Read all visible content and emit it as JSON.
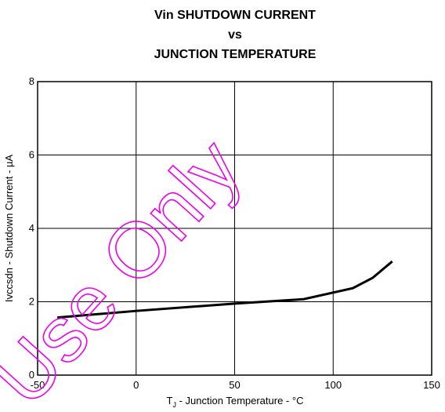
{
  "chart_data": {
    "type": "line",
    "title": [
      "Vin SHUTDOWN CURRENT",
      "vs",
      "JUNCTION TEMPERATURE"
    ],
    "x_label": {
      "symbol": "T",
      "subscript": "J",
      "text": " - Junction Temperature - °C"
    },
    "y_label": "Ivccsdn - Shutdown Current - µA",
    "watermark": "Use Only",
    "x": [
      -40,
      0,
      50,
      85,
      110,
      120,
      130
    ],
    "series": [
      {
        "name": "Shutdown Current",
        "color": "#000000",
        "values": [
          1.57,
          1.75,
          1.95,
          2.07,
          2.37,
          2.65,
          3.1
        ]
      }
    ],
    "xlim": [
      -50,
      150
    ],
    "xticks": [
      -50,
      0,
      50,
      100,
      150
    ],
    "ylim": [
      0,
      8
    ],
    "yticks": [
      0,
      2,
      4,
      6,
      8
    ],
    "grid": true
  }
}
